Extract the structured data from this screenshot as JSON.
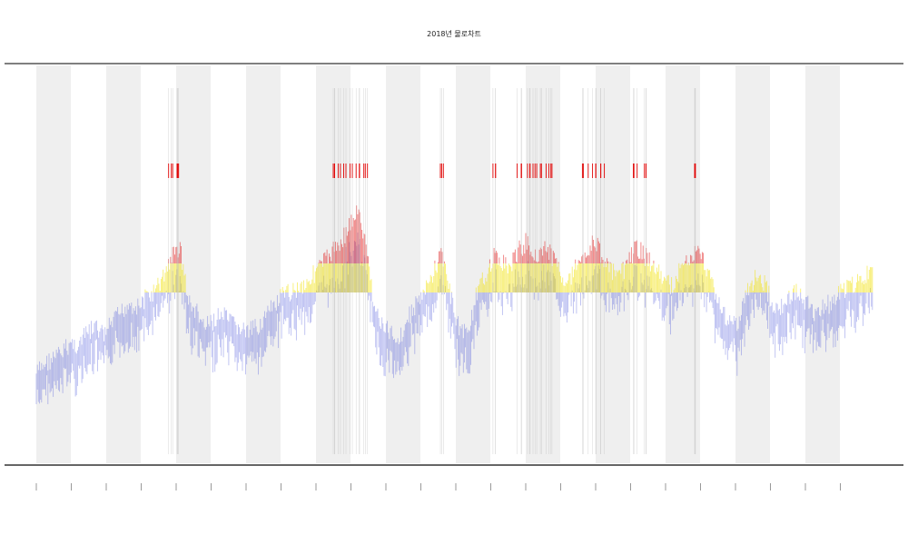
{
  "chart_data": {
    "type": "area",
    "title": "2018년 물로차트",
    "xlabel": "",
    "ylabel": "",
    "legend_text": "",
    "y_bands": [
      {
        "name": "band-low",
        "color": "#3a46d8"
      },
      {
        "name": "band-mid",
        "color": "#f0e000"
      },
      {
        "name": "band-high",
        "color": "#e00000"
      }
    ],
    "shaded_columns": 12,
    "tick_count": 24,
    "tick_labels": [],
    "series": [
      {
        "values": [
          12,
          16,
          18,
          20,
          24,
          23,
          28,
          30,
          27,
          32,
          36,
          40,
          38,
          42,
          44,
          50,
          58,
          62,
          40,
          36,
          30,
          33,
          35,
          32,
          30,
          28,
          30,
          34,
          38,
          42,
          44,
          46,
          48,
          52,
          56,
          60,
          64,
          70,
          76,
          62,
          38,
          30,
          28,
          26,
          34,
          40,
          44,
          52,
          60,
          42,
          30,
          28,
          42,
          50,
          58,
          56,
          54,
          60,
          64,
          58,
          62,
          58,
          52,
          48,
          56,
          60,
          64,
          58,
          52,
          50,
          56,
          62,
          58,
          54,
          50,
          46,
          52,
          56,
          60,
          56,
          48,
          36,
          34,
          30,
          44,
          50,
          48,
          40,
          38,
          42,
          44,
          40,
          36,
          38,
          40,
          44,
          46,
          48,
          50,
          52
        ]
      }
    ],
    "colors": {
      "low": "#3a46d8",
      "mid": "#f0e000",
      "high": "#e00000",
      "shade": "#efefef",
      "axis": "#333333",
      "tick_mark": "#555555"
    }
  }
}
